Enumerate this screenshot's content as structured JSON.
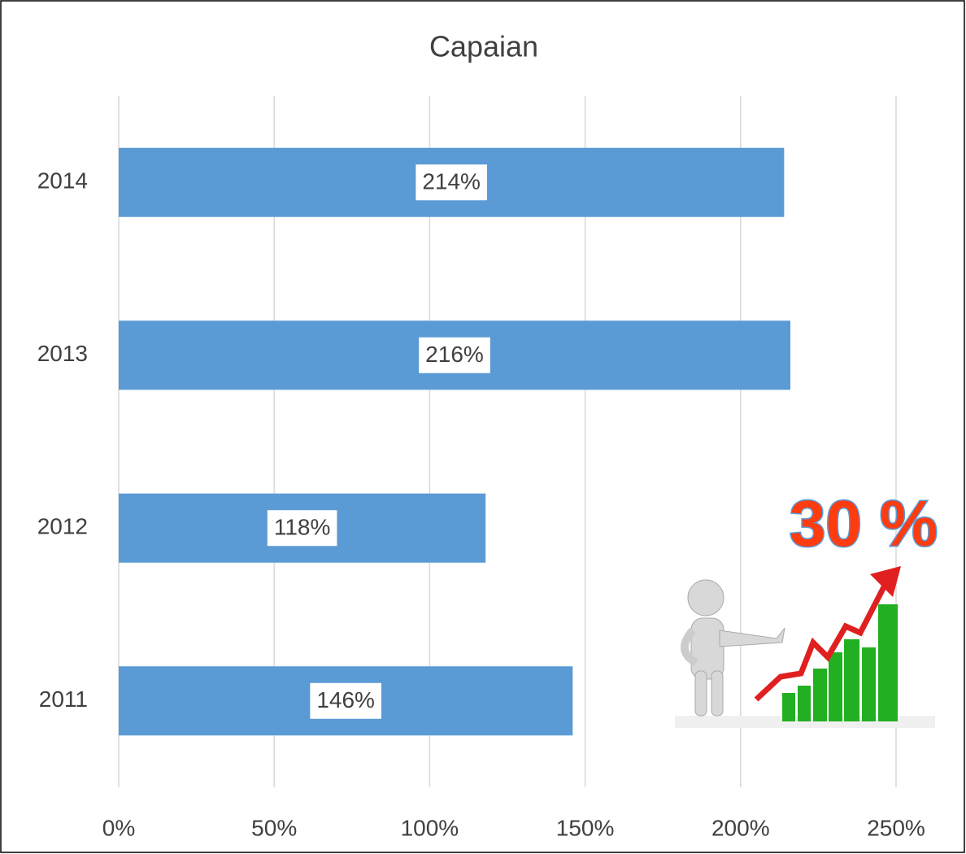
{
  "chart_data": {
    "type": "hbar",
    "title": "Capaian",
    "categories": [
      "2011",
      "2012",
      "2013",
      "2014"
    ],
    "values": [
      146,
      118,
      216,
      214
    ],
    "value_labels": [
      "146%",
      "118%",
      "216%",
      "214%"
    ],
    "color": "#5b9bd5",
    "xlim": [
      0,
      250
    ],
    "xticks": [
      {
        "value": 0,
        "label": "0%"
      },
      {
        "value": 50,
        "label": "50%"
      },
      {
        "value": 100,
        "label": "100%"
      },
      {
        "value": 150,
        "label": "150%"
      },
      {
        "value": 200,
        "label": "200%"
      },
      {
        "value": 250,
        "label": "250%"
      }
    ],
    "grid": true,
    "annotation": "30 %"
  }
}
